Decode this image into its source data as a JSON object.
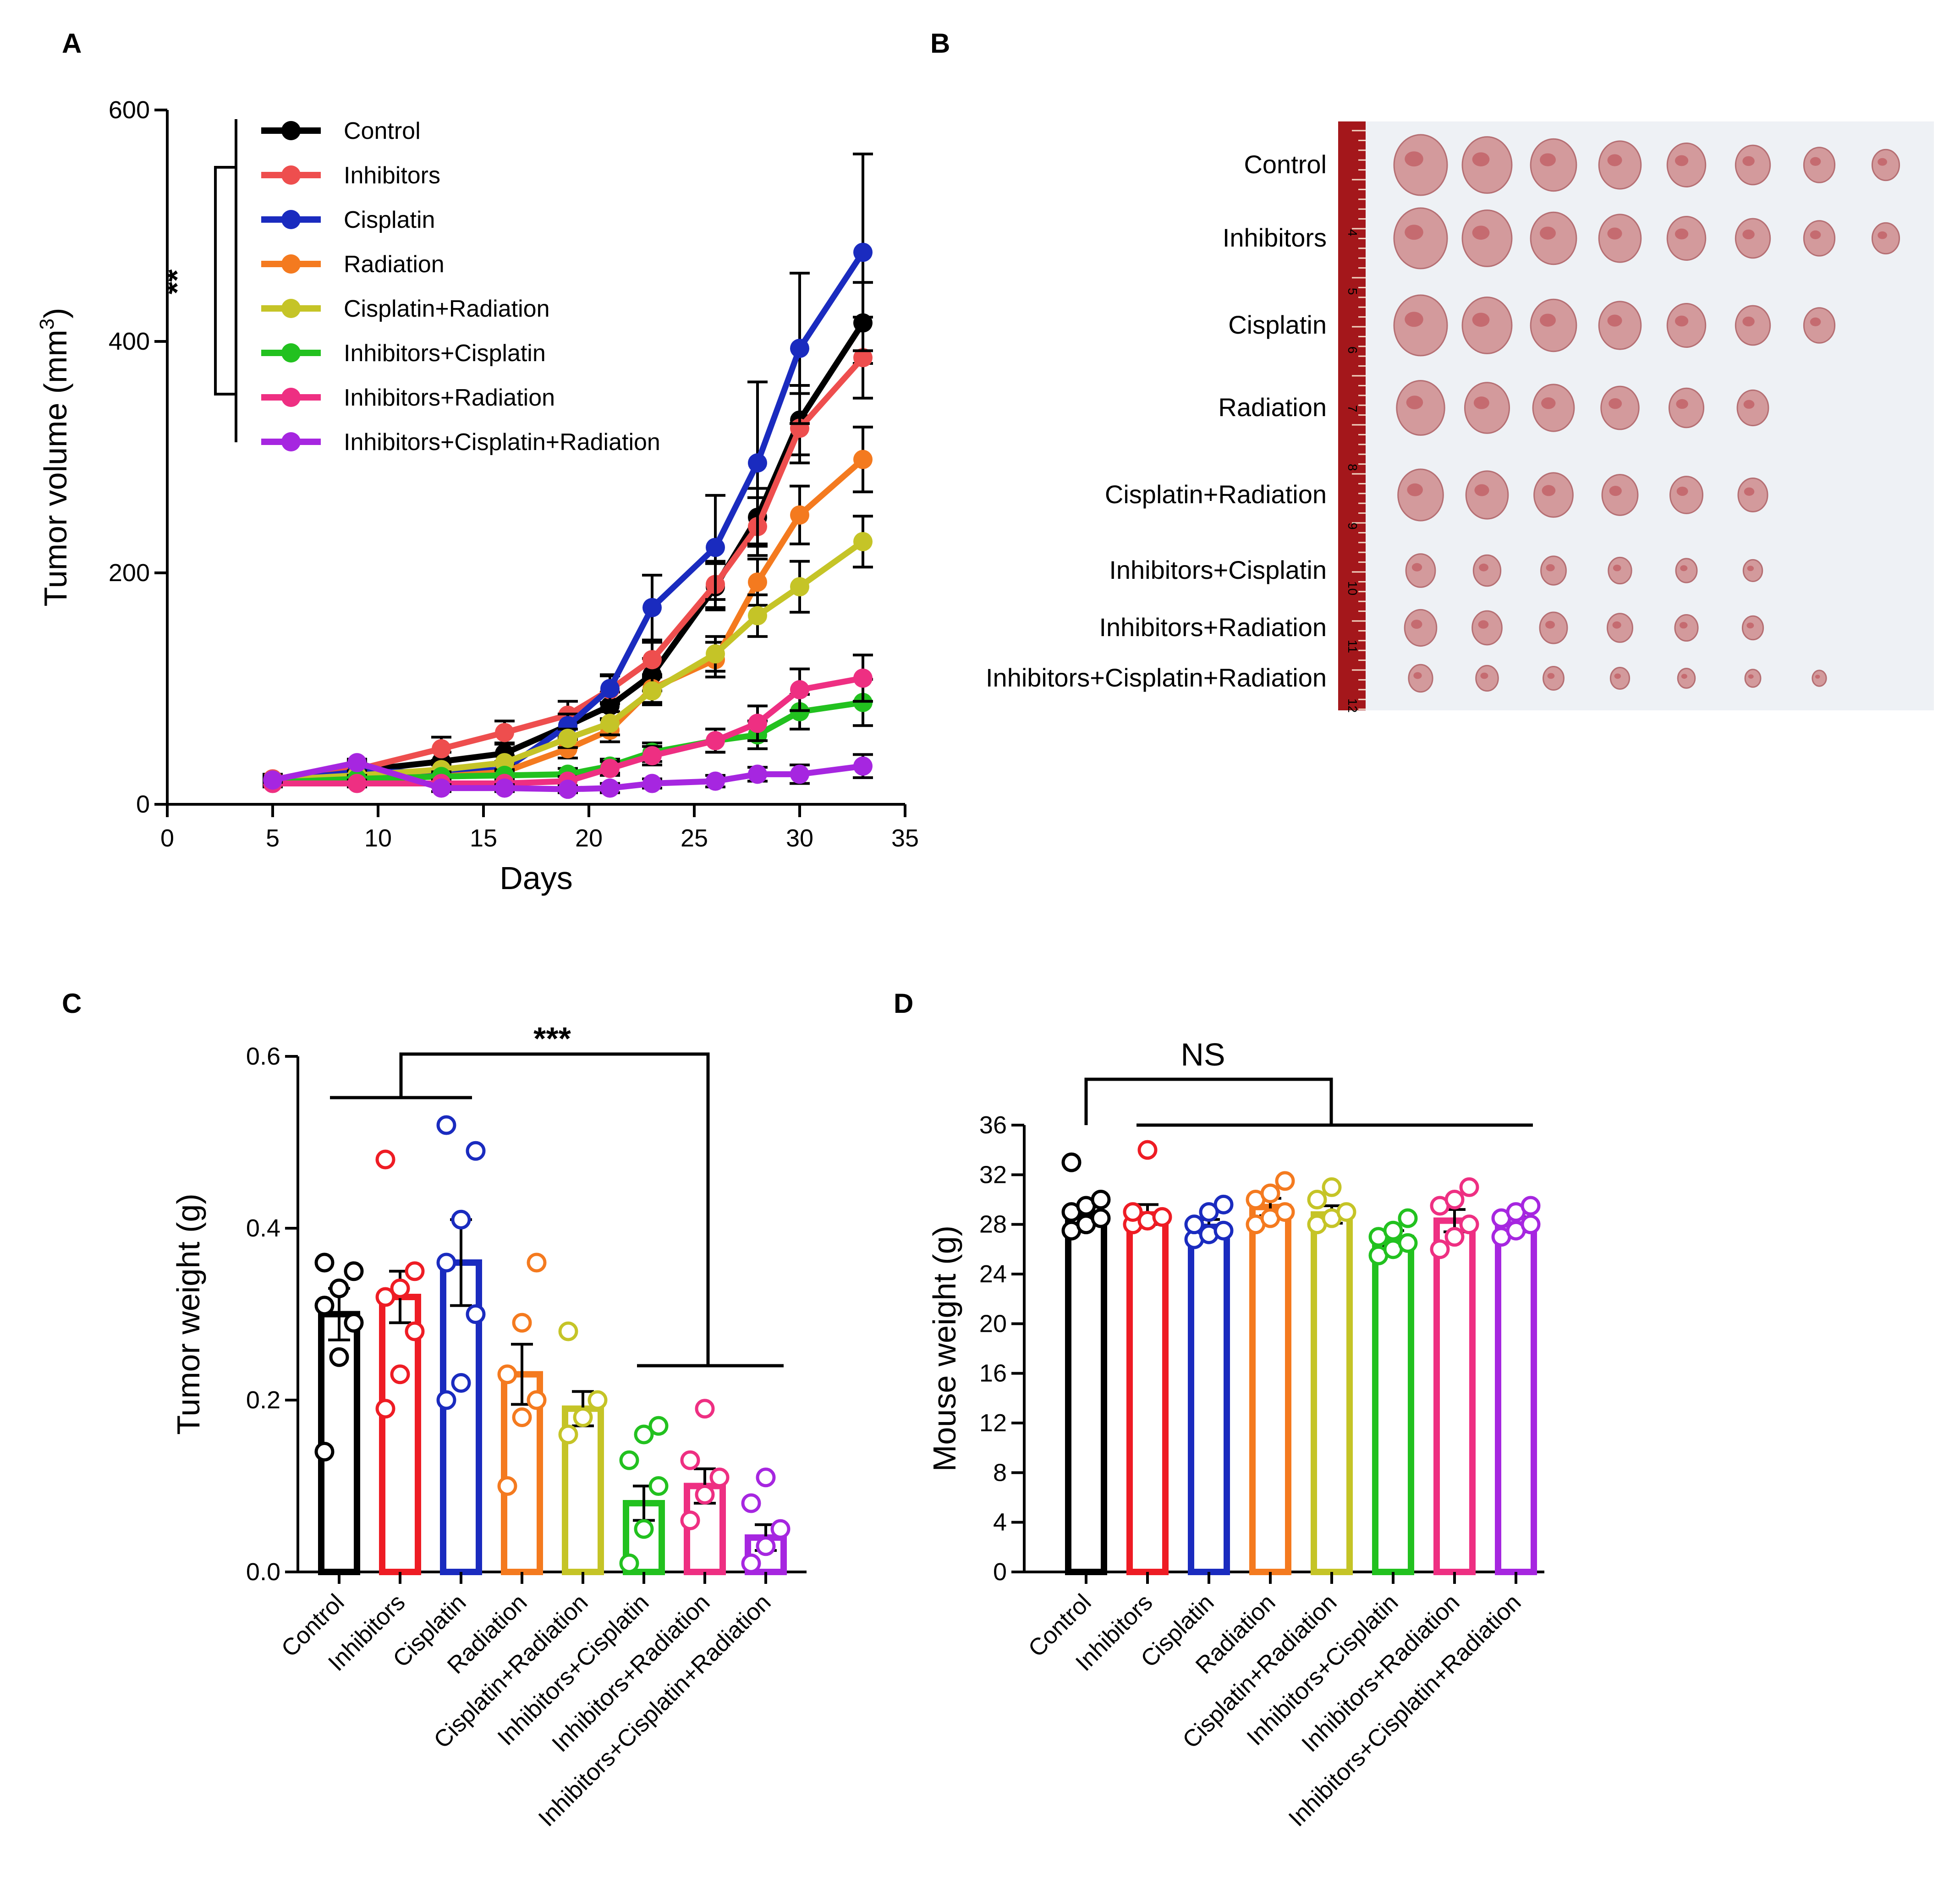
{
  "chart_data": [
    {
      "panel": "A",
      "type": "line",
      "title": "",
      "xlabel": "Days",
      "ylabel": "Tumor volume (mm",
      "ylabel_sup": "3",
      "ylabel_close": ")",
      "xlim": [
        0,
        35
      ],
      "ylim": [
        0,
        600
      ],
      "xticks": [
        "0",
        "5",
        "10",
        "15",
        "20",
        "25",
        "30",
        "35"
      ],
      "yticks": [
        "0",
        "200",
        "400",
        "600"
      ],
      "legend_position": "top-left",
      "significance": "**",
      "x": [
        5,
        9,
        13,
        16,
        19,
        21,
        23,
        26,
        28,
        30,
        33
      ],
      "series": [
        {
          "name": "Control",
          "color": "#000000",
          "values": [
            20,
            29,
            37,
            44,
            68,
            85,
            112,
            188,
            248,
            332,
            416
          ],
          "errors": [
            4,
            6,
            8,
            9,
            10,
            12,
            14,
            20,
            25,
            30,
            35
          ]
        },
        {
          "name": "Inhibitors",
          "color": "#ee4e4e",
          "values": [
            22,
            30,
            48,
            62,
            77,
            99,
            125,
            190,
            240,
            325,
            386
          ],
          "errors": [
            4,
            7,
            10,
            10,
            12,
            12,
            15,
            20,
            25,
            30,
            35
          ]
        },
        {
          "name": "Cisplatin",
          "color": "#1a2bbf",
          "values": [
            20,
            28,
            28,
            30,
            68,
            100,
            170,
            222,
            295,
            394,
            477
          ],
          "errors": [
            4,
            5,
            6,
            7,
            10,
            12,
            28,
            45,
            70,
            65,
            85
          ]
        },
        {
          "name": "Radiation",
          "color": "#f47a1f",
          "values": [
            20,
            22,
            24,
            28,
            48,
            64,
            100,
            125,
            192,
            250,
            298
          ],
          "errors": [
            3,
            4,
            5,
            6,
            8,
            10,
            12,
            15,
            20,
            25,
            28
          ]
        },
        {
          "name": "Cisplatin+Radiation",
          "color": "#c5c427",
          "values": [
            21,
            25,
            30,
            36,
            57,
            70,
            98,
            130,
            163,
            188,
            227
          ],
          "errors": [
            3,
            4,
            5,
            6,
            8,
            10,
            12,
            15,
            18,
            22,
            22
          ]
        },
        {
          "name": "Inhibitors+Cisplatin",
          "color": "#22c11f",
          "values": [
            19,
            22,
            24,
            25,
            26,
            33,
            45,
            55,
            60,
            80,
            88
          ],
          "errors": [
            3,
            3,
            4,
            4,
            5,
            6,
            8,
            10,
            12,
            15,
            20
          ]
        },
        {
          "name": "Inhibitors+Radiation",
          "color": "#ee2f82",
          "values": [
            18,
            18,
            18,
            18,
            20,
            31,
            42,
            55,
            70,
            99,
            109
          ],
          "errors": [
            3,
            3,
            3,
            3,
            4,
            6,
            8,
            10,
            15,
            18,
            20
          ]
        },
        {
          "name": "Inhibitors+Cisplatin+Radiation",
          "color": "#a626e0",
          "values": [
            21,
            36,
            14,
            14,
            13,
            14,
            18,
            20,
            26,
            26,
            33
          ],
          "errors": [
            2,
            3,
            3,
            3,
            3,
            4,
            4,
            5,
            6,
            8,
            10
          ]
        }
      ]
    },
    {
      "panel": "C",
      "type": "bar",
      "title": "",
      "xlabel": "",
      "ylabel": "Tumor weight (g)",
      "ylim": [
        0,
        0.6
      ],
      "yticks": [
        "0.0",
        "0.2",
        "0.4",
        "0.6"
      ],
      "significance": "***",
      "categories": [
        "Control",
        "Inhibitors",
        "Cisplatin",
        "Radiation",
        "Cisplatin+Radiation",
        "Inhibitors+Cisplatin",
        "Inhibitors+Radiation",
        "Inhibitors+Cisplatin+Radiation"
      ],
      "colors": [
        "#000000",
        "#ee1c24",
        "#1a2bbf",
        "#f47a1f",
        "#c5c427",
        "#22c11f",
        "#ee2f82",
        "#a626e0"
      ],
      "values": [
        0.3,
        0.32,
        0.36,
        0.23,
        0.19,
        0.08,
        0.1,
        0.04
      ],
      "errors": [
        0.03,
        0.03,
        0.05,
        0.035,
        0.02,
        0.02,
        0.02,
        0.015
      ],
      "points": [
        [
          0.14,
          0.25,
          0.29,
          0.31,
          0.33,
          0.35,
          0.36
        ],
        [
          0.19,
          0.23,
          0.28,
          0.32,
          0.33,
          0.35,
          0.48
        ],
        [
          0.2,
          0.22,
          0.3,
          0.36,
          0.41,
          0.49,
          0.52
        ],
        [
          0.1,
          0.18,
          0.2,
          0.23,
          0.29,
          0.36
        ],
        [
          0.16,
          0.18,
          0.2,
          0.28
        ],
        [
          0.01,
          0.05,
          0.1,
          0.13,
          0.16,
          0.17
        ],
        [
          0.06,
          0.09,
          0.11,
          0.13,
          0.19
        ],
        [
          0.01,
          0.03,
          0.05,
          0.08,
          0.11
        ]
      ]
    },
    {
      "panel": "D",
      "type": "bar",
      "title": "",
      "xlabel": "",
      "ylabel": "Mouse weight (g)",
      "ylim": [
        0,
        36
      ],
      "yticks": [
        "0",
        "4",
        "8",
        "12",
        "16",
        "20",
        "24",
        "28",
        "32",
        "36"
      ],
      "significance": "NS",
      "categories": [
        "Control",
        "Inhibitors",
        "Cisplatin",
        "Radiation",
        "Cisplatin+Radiation",
        "Inhibitors+Cisplatin",
        "Inhibitors+Radiation",
        "Inhibitors+Cisplatin+Radiation"
      ],
      "colors": [
        "#000000",
        "#ee1c24",
        "#1a2bbf",
        "#f47a1f",
        "#c5c427",
        "#22c11f",
        "#ee2f82",
        "#a626e0"
      ],
      "values": [
        28.8,
        28.8,
        27.8,
        29.4,
        28.8,
        26.9,
        28.3,
        28.0
      ],
      "errors": [
        0.7,
        0.8,
        0.6,
        0.7,
        0.7,
        0.6,
        0.9,
        0.6
      ],
      "points": [
        [
          27.5,
          28.0,
          28.5,
          29.0,
          29.5,
          30.0,
          33.0
        ],
        [
          28.0,
          28.3,
          28.6,
          29.0,
          34.0
        ],
        [
          26.8,
          27.2,
          27.5,
          28.0,
          29.0,
          29.6
        ],
        [
          28.0,
          28.5,
          29.0,
          30.0,
          30.5,
          31.5
        ],
        [
          28.0,
          28.5,
          29.0,
          30.0,
          31.0
        ],
        [
          25.5,
          26.0,
          26.5,
          27.0,
          27.5,
          28.5
        ],
        [
          26.0,
          27.0,
          28.0,
          29.5,
          30.0,
          31.0
        ],
        [
          27.0,
          27.5,
          28.0,
          28.5,
          29.0,
          29.5
        ]
      ]
    }
  ],
  "panel_letters": [
    "A",
    "B",
    "C",
    "D"
  ],
  "photo": {
    "rows": [
      "Control",
      "Inhibitors",
      "Cisplatin",
      "Radiation",
      "Cisplatin+Radiation",
      "Inhibitors+Cisplatin",
      "Inhibitors+Radiation",
      "Inhibitors+Cisplatin+Radiation"
    ],
    "tumor_counts": [
      8,
      8,
      7,
      6,
      6,
      6,
      6,
      7
    ],
    "ruler_numbers": [
      "4",
      "5",
      "6",
      "7",
      "8",
      "9",
      "10",
      "11",
      "12"
    ],
    "background_color": "#eef1f5",
    "ruler_color": "#a4171b",
    "tumor_color": "#d39a9c"
  }
}
